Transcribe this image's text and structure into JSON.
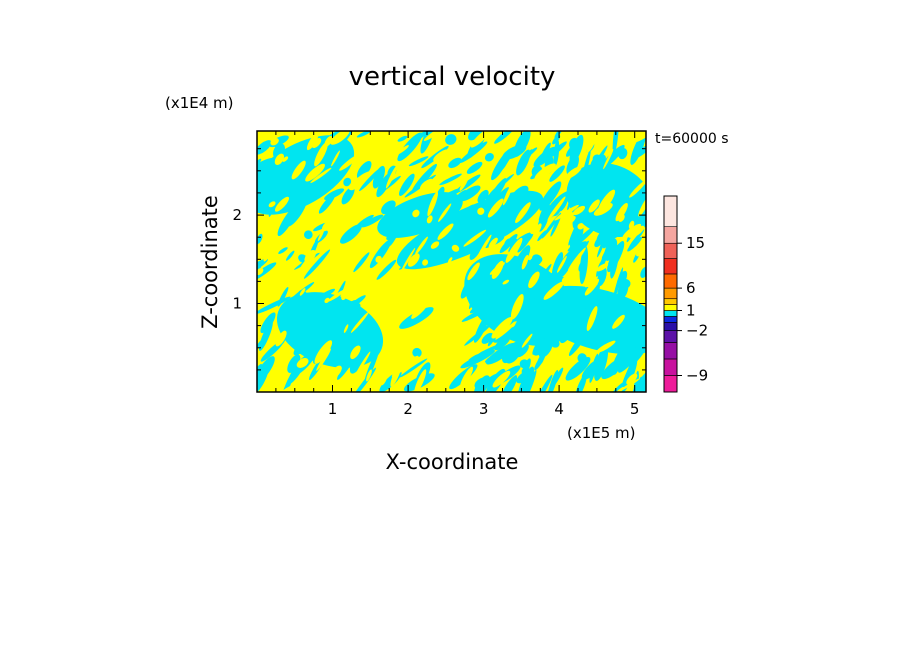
{
  "chart_data": {
    "type": "heatmap",
    "title": "vertical velocity",
    "xlabel": "X-coordinate",
    "ylabel": "Z-coordinate",
    "x_scale_label": "(x1E5 m)",
    "y_scale_label": "(x1E4 m)",
    "time_label": "t=60000 s",
    "xlim": [
      0,
      5.15
    ],
    "ylim": [
      0,
      2.95
    ],
    "x_ticks": [
      1,
      2,
      3,
      4,
      5
    ],
    "y_ticks": [
      1,
      2
    ],
    "x_tick_labels": [
      "1",
      "2",
      "3",
      "4",
      "5"
    ],
    "y_tick_labels": [
      "1",
      "2"
    ],
    "field_description": "Banded pattern dominated by two contour levels: slightly positive (0 to 1) and slightly negative (-1 to 0) vertical velocity",
    "colors": {
      "positive_small": "#ffff00",
      "negative_small": "#00e5f0",
      "frame": "#000000"
    },
    "colorbar": {
      "levels": [
        -12,
        -9,
        -6,
        -4,
        -2,
        -1,
        0,
        1,
        2,
        4,
        6,
        9,
        12,
        15,
        18,
        24
      ],
      "colors": [
        "#ee1c9a",
        "#c8129e",
        "#960fa4",
        "#5c12a8",
        "#2a10a8",
        "#0a2be0",
        "#00e5f0",
        "#ffff00",
        "#ffc800",
        "#ff9a00",
        "#ff6a00",
        "#f02f1f",
        "#ef6258",
        "#f5a6a0",
        "#fde6e0"
      ],
      "tick_values": [
        15,
        6,
        1,
        -2,
        -9
      ],
      "tick_labels": [
        "15",
        "6",
        "1",
        "−2",
        "−9"
      ]
    }
  }
}
